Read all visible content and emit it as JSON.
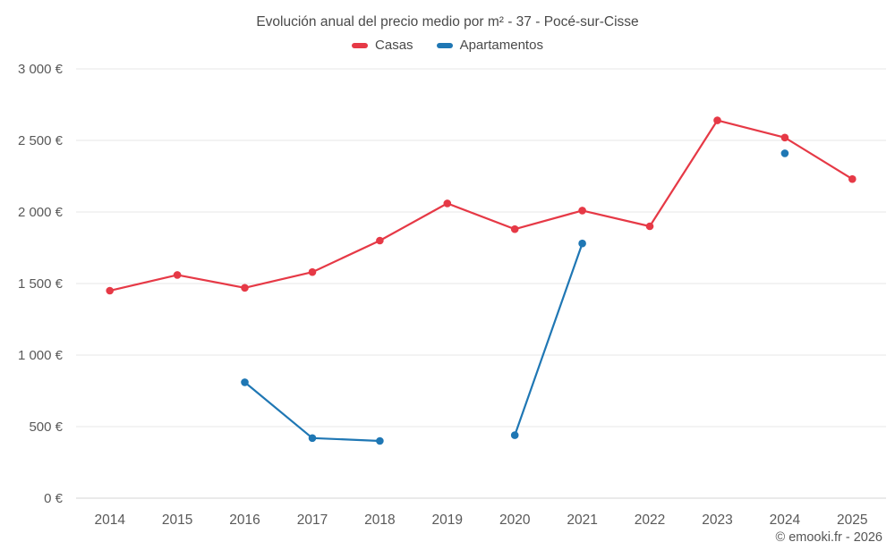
{
  "chart_data": {
    "type": "line",
    "title": "Evolución anual del precio medio por m² - 37 - Pocé-sur-Cisse",
    "categories": [
      "2014",
      "2015",
      "2016",
      "2017",
      "2018",
      "2019",
      "2020",
      "2021",
      "2022",
      "2023",
      "2024",
      "2025"
    ],
    "series": [
      {
        "name": "Casas",
        "color": "#e63946",
        "values": [
          1450,
          1560,
          1470,
          1580,
          1800,
          2060,
          1880,
          2010,
          1900,
          2640,
          2520,
          2230
        ]
      },
      {
        "name": "Apartamentos",
        "color": "#1f77b4",
        "values": [
          null,
          null,
          810,
          420,
          400,
          null,
          440,
          1780,
          null,
          null,
          2410,
          null
        ]
      }
    ],
    "ylim": [
      0,
      3000
    ],
    "yticks": [
      {
        "value": 0,
        "label": "0 €"
      },
      {
        "value": 500,
        "label": "500 €"
      },
      {
        "value": 1000,
        "label": "1 000 €"
      },
      {
        "value": 1500,
        "label": "1 500 €"
      },
      {
        "value": 2000,
        "label": "2 000 €"
      },
      {
        "value": 2500,
        "label": "2 500 €"
      },
      {
        "value": 3000,
        "label": "3 000 €"
      }
    ],
    "grid": "horizontal",
    "legend_position": "top"
  },
  "footer": {
    "copyright": "© emooki.fr - 2026"
  }
}
